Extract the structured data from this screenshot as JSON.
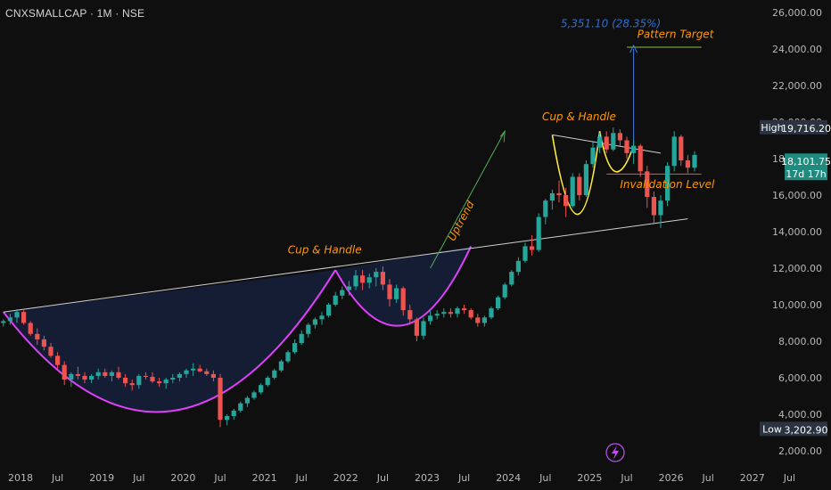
{
  "header": {
    "ticker": "CNXSMALLCAP · 1M · NSE"
  },
  "chart_data": {
    "type": "candlestick",
    "symbol": "CNXSMALLCAP",
    "interval": "1M",
    "exchange": "NSE",
    "price_axis": {
      "ticks": [
        "26,000.00",
        "24,000.00",
        "22,000.00",
        "20,000.00",
        "18,000.00",
        "16,000.00",
        "14,000.00",
        "12,000.00",
        "10,000.00",
        "8,000.00",
        "6,000.00",
        "4,000.00",
        "2,000.00"
      ],
      "range": [
        1200,
        26500
      ],
      "scale": "linear"
    },
    "time_axis": {
      "ticks": [
        "2018",
        "Jul",
        "2019",
        "Jul",
        "2020",
        "Jul",
        "2021",
        "Jul",
        "2022",
        "Jul",
        "2023",
        "Jul",
        "2024",
        "Jul",
        "2025",
        "Jul",
        "2026",
        "Jul",
        "2027",
        "Jul"
      ],
      "range": [
        "2017-11",
        "2027-11"
      ]
    },
    "ohlc": [
      [
        9000,
        9200,
        8800,
        9100
      ],
      [
        9100,
        9500,
        8900,
        9300
      ],
      [
        9300,
        9750,
        9000,
        9600
      ],
      [
        9600,
        9700,
        8900,
        9000
      ],
      [
        9000,
        9100,
        8300,
        8400
      ],
      [
        8400,
        8700,
        7800,
        8100
      ],
      [
        8100,
        8300,
        7500,
        7700
      ],
      [
        7700,
        7900,
        7100,
        7200
      ],
      [
        7200,
        7400,
        6500,
        6700
      ],
      [
        6700,
        6900,
        5600,
        5900
      ],
      [
        5900,
        6300,
        5500,
        6200
      ],
      [
        6200,
        6600,
        5900,
        6100
      ],
      [
        6100,
        6300,
        5700,
        5900
      ],
      [
        5900,
        6200,
        5700,
        6100
      ],
      [
        6100,
        6500,
        5900,
        6300
      ],
      [
        6300,
        6500,
        6000,
        6100
      ],
      [
        6100,
        6400,
        5800,
        6300
      ],
      [
        6300,
        6600,
        5900,
        6000
      ],
      [
        6000,
        6200,
        5500,
        5700
      ],
      [
        5700,
        5900,
        5300,
        5600
      ],
      [
        5600,
        6200,
        5400,
        6100
      ],
      [
        6100,
        6300,
        5900,
        6050
      ],
      [
        6050,
        6300,
        5700,
        5800
      ],
      [
        5800,
        6000,
        5500,
        5700
      ],
      [
        5700,
        6000,
        5400,
        5900
      ],
      [
        5900,
        6200,
        5700,
        6000
      ],
      [
        6000,
        6300,
        5800,
        6200
      ],
      [
        6200,
        6500,
        6000,
        6400
      ],
      [
        6400,
        6800,
        6100,
        6500
      ],
      [
        6500,
        6700,
        6300,
        6350
      ],
      [
        6350,
        6500,
        6100,
        6200
      ],
      [
        6200,
        6400,
        5800,
        6000
      ],
      [
        6000,
        6200,
        3300,
        3700
      ],
      [
        3700,
        4000,
        3400,
        3900
      ],
      [
        3900,
        4300,
        3700,
        4200
      ],
      [
        4200,
        4700,
        4100,
        4600
      ],
      [
        4600,
        5000,
        4400,
        4900
      ],
      [
        4900,
        5300,
        4800,
        5200
      ],
      [
        5200,
        5700,
        5100,
        5600
      ],
      [
        5600,
        6100,
        5500,
        6000
      ],
      [
        6000,
        6500,
        5900,
        6400
      ],
      [
        6400,
        7000,
        6300,
        6900
      ],
      [
        6900,
        7500,
        6800,
        7400
      ],
      [
        7400,
        8100,
        7300,
        7900
      ],
      [
        7900,
        8600,
        7800,
        8400
      ],
      [
        8400,
        9000,
        8200,
        8900
      ],
      [
        8900,
        9300,
        8700,
        9200
      ],
      [
        9200,
        9600,
        8900,
        9400
      ],
      [
        9400,
        10100,
        9300,
        10000
      ],
      [
        10000,
        10700,
        9900,
        10500
      ],
      [
        10500,
        11000,
        10300,
        10800
      ],
      [
        10800,
        11300,
        10500,
        11000
      ],
      [
        11000,
        11900,
        10800,
        11600
      ],
      [
        11600,
        11900,
        10800,
        11200
      ],
      [
        11200,
        11700,
        10900,
        11500
      ],
      [
        11500,
        12000,
        11000,
        11800
      ],
      [
        11800,
        12100,
        10800,
        11100
      ],
      [
        11100,
        11400,
        9900,
        10300
      ],
      [
        10300,
        11100,
        10100,
        10900
      ],
      [
        10900,
        11000,
        9400,
        9700
      ],
      [
        9700,
        10000,
        8900,
        9200
      ],
      [
        9200,
        9300,
        8000,
        8300
      ],
      [
        8300,
        9300,
        8100,
        9100
      ],
      [
        9100,
        9700,
        8900,
        9400
      ],
      [
        9400,
        9700,
        9200,
        9500
      ],
      [
        9500,
        9800,
        9300,
        9600
      ],
      [
        9600,
        9800,
        9300,
        9500
      ],
      [
        9500,
        9900,
        9300,
        9800
      ],
      [
        9800,
        10000,
        9500,
        9700
      ],
      [
        9700,
        9800,
        9200,
        9300
      ],
      [
        9300,
        9500,
        8800,
        9000
      ],
      [
        9000,
        9400,
        8800,
        9300
      ],
      [
        9300,
        9900,
        9200,
        9800
      ],
      [
        9800,
        10500,
        9700,
        10400
      ],
      [
        10400,
        11200,
        10300,
        11100
      ],
      [
        11100,
        11900,
        11000,
        11800
      ],
      [
        11800,
        12600,
        11600,
        12400
      ],
      [
        12400,
        13400,
        12300,
        13200
      ],
      [
        13200,
        13800,
        12700,
        13000
      ],
      [
        13000,
        15000,
        12900,
        14800
      ],
      [
        14800,
        15800,
        14400,
        15700
      ],
      [
        15700,
        16300,
        15200,
        16100
      ],
      [
        16100,
        16800,
        15600,
        16000
      ],
      [
        16000,
        16400,
        14800,
        15400
      ],
      [
        15400,
        17200,
        15300,
        17000
      ],
      [
        17000,
        17200,
        15700,
        16000
      ],
      [
        16000,
        17900,
        15900,
        17700
      ],
      [
        17700,
        18900,
        17500,
        18600
      ],
      [
        18600,
        19400,
        18300,
        19200
      ],
      [
        19200,
        19500,
        18300,
        18500
      ],
      [
        18500,
        19700,
        18400,
        19400
      ],
      [
        19400,
        19600,
        18700,
        19000
      ],
      [
        19000,
        19200,
        18000,
        18300
      ],
      [
        18300,
        19000,
        17700,
        18700
      ],
      [
        18700,
        18800,
        17000,
        17300
      ],
      [
        17300,
        17600,
        15300,
        15900
      ],
      [
        15900,
        16200,
        14400,
        14900
      ],
      [
        14900,
        16000,
        14200,
        15700
      ],
      [
        15700,
        17800,
        15400,
        17600
      ],
      [
        17600,
        19500,
        17300,
        19200
      ],
      [
        19200,
        19300,
        17600,
        17900
      ],
      [
        17900,
        18200,
        17200,
        17500
      ],
      [
        17500,
        18400,
        17300,
        18200
      ]
    ],
    "annotations": [
      {
        "text": "Cup & Handle",
        "color": "#ff9800"
      },
      {
        "text": "Cup & Handle",
        "color": "#ff9800"
      },
      {
        "text": "Uptrend",
        "color": "#ff9800"
      },
      {
        "text": "Invalidation Level",
        "color": "#ff9800"
      },
      {
        "text": "Pattern Target",
        "color": "#ff9800"
      },
      {
        "text": "5,351.10 (28.35%)",
        "color": "#2f6fd6"
      }
    ],
    "price_badges": {
      "high_label": "High",
      "high_value": "19,716.20",
      "last_value": "18,101.75",
      "last_time": "17d 17h",
      "low_label": "Low",
      "low_value": "3,202.90"
    },
    "colors": {
      "up": "#26a69a",
      "down": "#ef5350",
      "cup": "#e040fb",
      "cup2": "#ffeb3b",
      "target": "#8bc34a",
      "invalid": "#ef5350",
      "bg": "#0f0f0f"
    },
    "grid": false,
    "legend": "none"
  }
}
